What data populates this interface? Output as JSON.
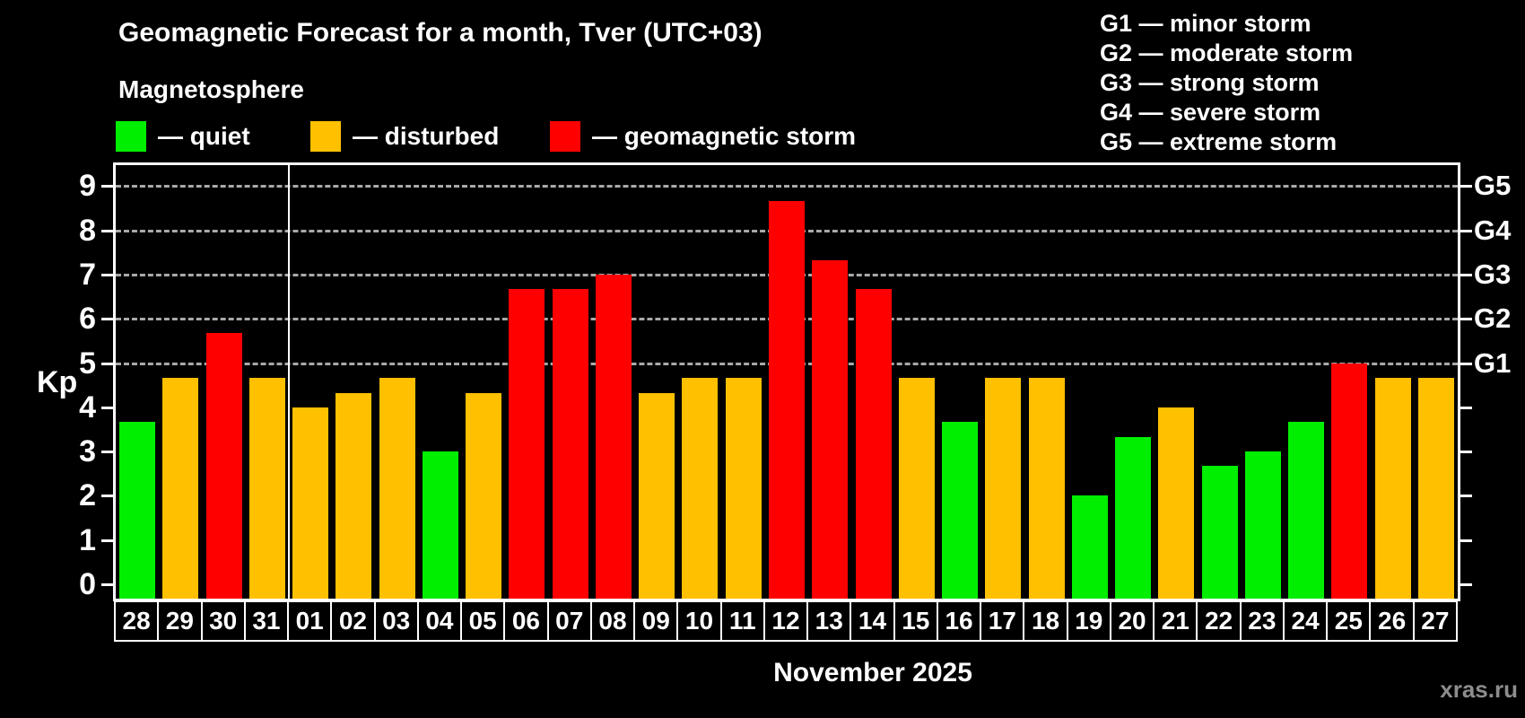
{
  "header": {
    "title": "Geomagnetic Forecast for a month, Tver (UTC+03)",
    "subtitle": "Magnetosphere",
    "legend": [
      {
        "name": "quiet",
        "label": "— quiet",
        "color": "#00ee00"
      },
      {
        "name": "disturbed",
        "label": "— disturbed",
        "color": "#ffc000"
      },
      {
        "name": "storm",
        "label": "— geomagnetic storm",
        "color": "#ff0000"
      }
    ],
    "g_scale_legend": [
      "G1 — minor storm",
      "G2 — moderate storm",
      "G3 — strong storm",
      "G4 — severe storm",
      "G5 — extreme storm"
    ]
  },
  "axes": {
    "y_label": "Kp",
    "y_ticks": [
      0,
      1,
      2,
      3,
      4,
      5,
      6,
      7,
      8,
      9
    ],
    "right_axis_labels": [
      {
        "label": "G5",
        "kp": 9
      },
      {
        "label": "G4",
        "kp": 8
      },
      {
        "label": "G3",
        "kp": 7
      },
      {
        "label": "G2",
        "kp": 6
      },
      {
        "label": "G1",
        "kp": 5
      }
    ]
  },
  "footer": {
    "month_label": "November 2025",
    "watermark": "xras.ru"
  },
  "chart_data": {
    "type": "bar",
    "title": "Geomagnetic Forecast for a month, Tver (UTC+03)",
    "ylabel": "Kp",
    "xlabel": "November 2025",
    "ylim": [
      0,
      9
    ],
    "grid_levels": [
      5,
      6,
      7,
      8,
      9
    ],
    "grid_style": "dashed horizontal lines at G1–G5 storm thresholds",
    "legend_position": "top-left",
    "separator_after_index": 3,
    "categories": [
      "28",
      "29",
      "30",
      "31",
      "01",
      "02",
      "03",
      "04",
      "05",
      "06",
      "07",
      "08",
      "09",
      "10",
      "11",
      "12",
      "13",
      "14",
      "15",
      "16",
      "17",
      "18",
      "19",
      "20",
      "21",
      "22",
      "23",
      "24",
      "25",
      "26",
      "27"
    ],
    "values": [
      3.67,
      4.67,
      5.67,
      4.67,
      4.0,
      4.33,
      4.67,
      3.0,
      4.33,
      6.67,
      6.67,
      7.0,
      4.33,
      4.67,
      4.67,
      8.67,
      7.33,
      6.67,
      4.67,
      3.67,
      4.67,
      4.67,
      2.0,
      3.33,
      4.0,
      2.67,
      3.0,
      3.67,
      5.0,
      4.67,
      4.67
    ],
    "states": [
      "quiet",
      "disturbed",
      "storm",
      "disturbed",
      "disturbed",
      "disturbed",
      "disturbed",
      "quiet",
      "disturbed",
      "storm",
      "storm",
      "storm",
      "disturbed",
      "disturbed",
      "disturbed",
      "storm",
      "storm",
      "storm",
      "disturbed",
      "quiet",
      "disturbed",
      "disturbed",
      "quiet",
      "quiet",
      "disturbed",
      "quiet",
      "quiet",
      "quiet",
      "storm",
      "disturbed",
      "disturbed"
    ],
    "colors": {
      "quiet": "#00ee00",
      "disturbed": "#ffc000",
      "storm": "#ff0000"
    }
  }
}
